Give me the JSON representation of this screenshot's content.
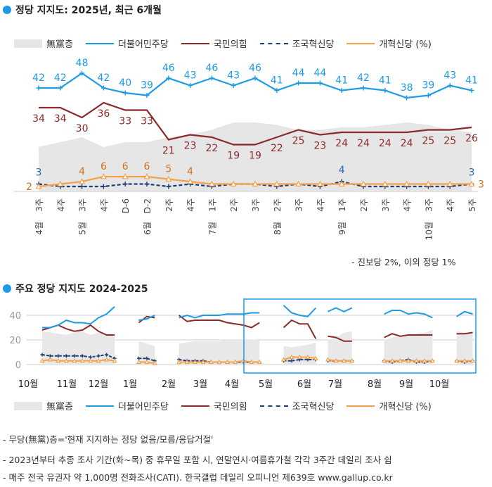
{
  "chart_data": [
    {
      "type": "line",
      "title": "정당 지지도: 2025년, 최근 6개월",
      "categories": [
        "4월 3주",
        "4주",
        "5월 3주",
        "4주",
        "D-6",
        "6월 D-2",
        "2주",
        "4주",
        "7월 1주",
        "2주",
        "3주",
        "8월 2주",
        "3주",
        "4주",
        "9월 1주",
        "2주",
        "3주",
        "4주",
        "10월 3주",
        "4주",
        "5주"
      ],
      "tick_top": [
        "3주",
        "4주",
        "3주",
        "4주",
        "D-6",
        "D-2",
        "2주",
        "4주",
        "1주",
        "2주",
        "3주",
        "2주",
        "3주",
        "4주",
        "1주",
        "2주",
        "3주",
        "4주",
        "3주",
        "4주",
        "5주"
      ],
      "tick_month": [
        "4월",
        "",
        "5월",
        "",
        "",
        "6월",
        "",
        "",
        "7월",
        "",
        "",
        "8월",
        "",
        "",
        "9월",
        "",
        "",
        "",
        "10월",
        "",
        ""
      ],
      "series": [
        {
          "name": "無黨층",
          "type": "area",
          "color": "#e6e6e6",
          "values": [
            18,
            20,
            22,
            18,
            20,
            20,
            22,
            23,
            25,
            28,
            28,
            27,
            25,
            25,
            26,
            26,
            27,
            28,
            27,
            25,
            24
          ]
        },
        {
          "name": "더불어민주당",
          "color": "#1e9be6",
          "values": [
            42,
            42,
            48,
            42,
            40,
            39,
            46,
            43,
            46,
            43,
            46,
            41,
            44,
            44,
            41,
            42,
            41,
            38,
            39,
            43,
            41
          ],
          "labels": [
            "42",
            "42",
            "48",
            "42",
            "40",
            "39",
            "46",
            "43",
            "46",
            "43",
            "46",
            "41",
            "44",
            "44",
            "41",
            "42",
            "41",
            "38",
            "39",
            "43",
            "41"
          ]
        },
        {
          "name": "국민의힘",
          "color": "#8b2a2a",
          "values": [
            34,
            34,
            30,
            36,
            33,
            33,
            21,
            23,
            22,
            19,
            19,
            22,
            25,
            23,
            24,
            24,
            24,
            24,
            25,
            25,
            26
          ],
          "labels": [
            "34",
            "34",
            "30",
            "36",
            "33",
            "33",
            "21",
            "23",
            "22",
            "19",
            "19",
            "22",
            "25",
            "23",
            "24",
            "24",
            "24",
            "24",
            "25",
            "25",
            "26"
          ]
        },
        {
          "name": "조국혁신당",
          "color": "#1f3f7a",
          "dashed": true,
          "values": [
            3,
            2,
            2,
            2,
            3,
            3,
            2,
            3,
            2,
            3,
            3,
            2,
            3,
            2,
            4,
            2,
            2,
            2,
            2,
            2,
            3
          ],
          "labels": [
            "3",
            "",
            "",
            "",
            "",
            "",
            "",
            "",
            "",
            "",
            "",
            "",
            "",
            "",
            "4",
            "",
            "",
            "",
            "",
            "",
            "3"
          ]
        },
        {
          "name": "개혁신당",
          "color": "#f5a14a",
          "values": [
            2,
            3,
            4,
            6,
            6,
            6,
            5,
            4,
            3,
            3,
            3,
            3,
            3,
            3,
            3,
            3,
            3,
            3,
            3,
            3,
            3
          ],
          "labels": [
            "2",
            "",
            "4",
            "6",
            "6",
            "6",
            "5",
            "4",
            "",
            "",
            "",
            "",
            "",
            "",
            "",
            "",
            "",
            "",
            "",
            "",
            "3"
          ]
        }
      ],
      "ylim": [
        0,
        55
      ],
      "legend": [
        "無黨층",
        "더불어민주당",
        "국민의힘",
        "조국혁신당",
        "개혁신당 (%)"
      ],
      "annotation": "- 진보당 2%, 이외 정당 1%"
    },
    {
      "type": "line",
      "title": "주요 정당 지지도 2024-2025",
      "yticks": [
        "0",
        "20",
        "40"
      ],
      "ylim": [
        0,
        50
      ],
      "xticks": [
        "10월",
        "11월",
        "12월",
        "1월",
        "2월",
        "3월",
        "4월",
        "5월",
        "6월",
        "7월",
        "8월",
        "9월",
        "10월"
      ],
      "segments": [
        {
          "start": 0,
          "無黨층": [
            27,
            26,
            25,
            24,
            26,
            27,
            24,
            26,
            25,
            24
          ],
          "더불어민주당": [
            30,
            30,
            32,
            36,
            34,
            34,
            33,
            38,
            41,
            47
          ],
          "국민의힘": [
            28,
            30,
            32,
            29,
            27,
            28,
            32,
            27,
            24,
            24
          ],
          "조국혁신당": [
            8,
            7,
            7,
            7,
            7,
            7,
            6,
            7,
            8,
            5
          ],
          "개혁신당": [
            3,
            4,
            3,
            3,
            3,
            3,
            3,
            3,
            4,
            3
          ]
        },
        {
          "start": 12,
          "無黨층": [
            19,
            17,
            15
          ],
          "더불어민주당": [
            36,
            37,
            40
          ],
          "국민의힘": [
            34,
            39,
            38
          ],
          "조국혁신당": [
            5,
            5,
            3
          ],
          "개혁신당": [
            2,
            2,
            1
          ]
        },
        {
          "start": 17,
          "無黨층": [
            17,
            18,
            19,
            19,
            19,
            19,
            20,
            20,
            20,
            20,
            21
          ],
          "더불어민주당": [
            38,
            40,
            38,
            40,
            40,
            40,
            41,
            41,
            41,
            42,
            42
          ],
          "국민의힘": [
            40,
            35,
            36,
            36,
            36,
            36,
            34,
            33,
            32,
            30,
            34
          ],
          "조국혁신당": [
            4,
            3,
            3,
            3,
            2,
            2,
            2,
            2,
            2,
            2,
            2
          ],
          "개혁신당": [
            2,
            2,
            2,
            2,
            2,
            2,
            2,
            2,
            3,
            2,
            2
          ]
        },
        {
          "start": 30,
          "無黨층": [
            15,
            14,
            15,
            16,
            18
          ],
          "더불어민주당": [
            48,
            42,
            40,
            39,
            46
          ],
          "국민의힘": [
            30,
            36,
            33,
            33,
            21
          ],
          "조국혁신당": [
            3,
            3,
            4,
            4,
            4
          ],
          "개혁신당": [
            4,
            6,
            6,
            6,
            5
          ]
        },
        {
          "start": 35.5,
          "無黨층": [
            20,
            22,
            26,
            27
          ],
          "더불어민주당": [
            43,
            46,
            43,
            46
          ],
          "국민의힘": [
            23,
            22,
            19,
            19
          ],
          "조국혁신당": [
            3,
            3,
            3,
            3
          ],
          "개혁신당": [
            4,
            3,
            3,
            3
          ]
        },
        {
          "start": 42.5,
          "無黨층": [
            20,
            22,
            23,
            24,
            25,
            26,
            28
          ],
          "더불어민주당": [
            41,
            44,
            44,
            41,
            42,
            41,
            38
          ],
          "국민의힘": [
            22,
            25,
            23,
            24,
            24,
            24,
            24
          ],
          "조국혁신당": [
            3,
            2,
            3,
            4,
            2,
            2,
            3
          ],
          "개혁신당": [
            3,
            3,
            3,
            3,
            3,
            3,
            3
          ]
        },
        {
          "start": 51.5,
          "無黨층": [
            27,
            26,
            25
          ],
          "더불어민주당": [
            39,
            43,
            41
          ],
          "국민의힘": [
            25,
            25,
            26
          ],
          "조국혁신당": [
            3,
            2,
            3
          ],
          "개혁신당": [
            3,
            3,
            3
          ]
        }
      ],
      "legend": [
        "無黨층",
        "더불어민주당",
        "국민의힘",
        "조국혁신당",
        "개혁신당 (%)"
      ]
    }
  ],
  "notes": [
    "- 무당(無黨)층='현재 지지하는 정당 없음/모름/응답거절'",
    "- 2023년부터 추종 조사 기간(화~목) 중 휴무일 포함 시, 연말연시·여름휴가철 각각 3주간 데일리 조사 쉼",
    "- 매주 전국 유권자 약 1,000명 전화조사(CATI). 한국갤럽 데일리 오피니언 제639호 www.gallup.co.kr"
  ]
}
